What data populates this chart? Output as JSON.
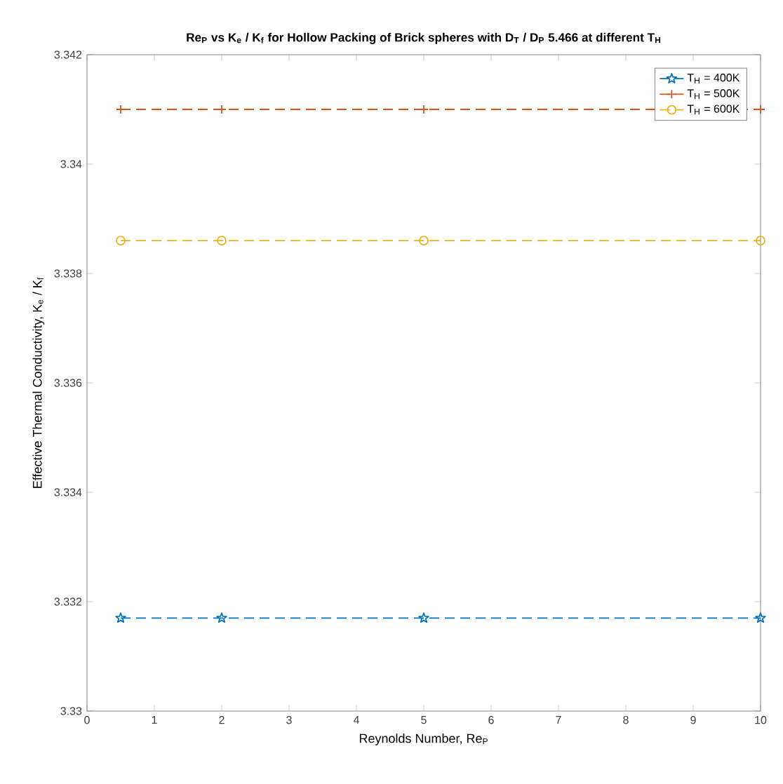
{
  "chart_data": {
    "type": "line",
    "title": "Re$_{P}$ vs K$_{e}$ / K$_{f}$ for Hollow Packing of Brick spheres with D$_{T}$ / D$_{P}$ 5.466 at different T$_{H}$",
    "xlabel": "Reynolds Number, Re$_{P}$",
    "ylabel": "Effective Thermal Conductivity, K$_{e}$ / K$_{f}$",
    "x": [
      0.5,
      2,
      5,
      10
    ],
    "series": [
      {
        "name": "T$_{H}$ = 400K",
        "color": "#0072bd",
        "marker": "star",
        "values": [
          3.3317,
          3.3317,
          3.3317,
          3.3317
        ]
      },
      {
        "name": "T$_{H}$ = 500K",
        "color": "#d95319",
        "marker": "cross",
        "values": [
          3.341,
          3.341,
          3.341,
          3.341
        ]
      },
      {
        "name": "T$_{H}$ = 600K",
        "color": "#edb120",
        "marker": "circle",
        "values": [
          3.3386,
          3.3386,
          3.3386,
          3.3386
        ]
      }
    ],
    "xlim": [
      0,
      10
    ],
    "xticks": [
      0,
      1,
      2,
      3,
      4,
      5,
      6,
      7,
      8,
      9,
      10
    ],
    "ylim": [
      3.33,
      3.342
    ],
    "yticks": [
      3.33,
      3.332,
      3.334,
      3.336,
      3.338,
      3.34,
      3.342
    ],
    "line_style": "dashed",
    "legend": "top right",
    "grid": false
  }
}
